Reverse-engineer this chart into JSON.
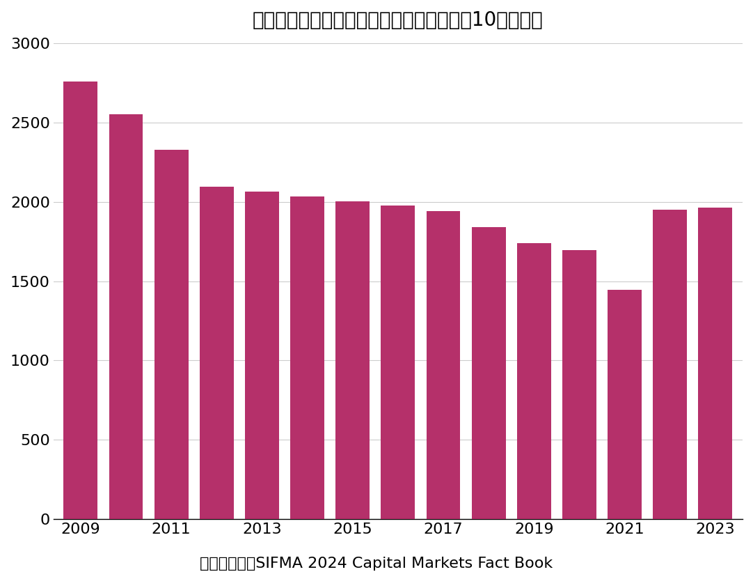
{
  "title": "米国政府機関債の発行残高の推移（単位：10億ドル）",
  "caption": "データ出所：SIFMA 2024 Capital Markets Fact Book",
  "years": [
    2009,
    2010,
    2011,
    2012,
    2013,
    2014,
    2015,
    2016,
    2017,
    2018,
    2019,
    2020,
    2021,
    2022,
    2023
  ],
  "values": [
    2760,
    2550,
    2330,
    2095,
    2065,
    2035,
    2005,
    1975,
    1940,
    1840,
    1740,
    1695,
    1445,
    1950,
    1965
  ],
  "bar_color": "#b5306a",
  "background_color": "#ffffff",
  "ylim": [
    0,
    3000
  ],
  "yticks": [
    0,
    500,
    1000,
    1500,
    2000,
    2500,
    3000
  ],
  "title_fontsize": 20,
  "caption_fontsize": 16,
  "tick_fontsize": 16,
  "grid_color": "#cccccc"
}
